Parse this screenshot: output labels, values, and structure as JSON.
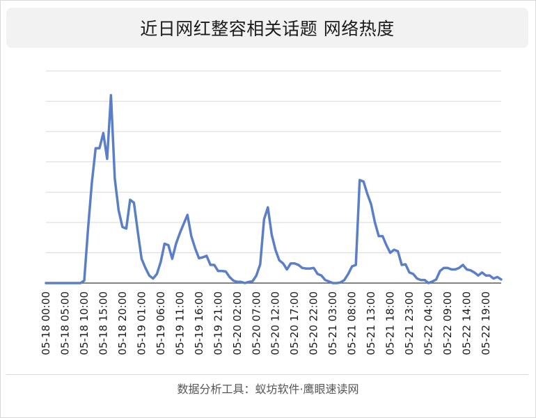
{
  "title": "近日网红整容相关话题 网络热度",
  "footer": "数据分析工具：蚁坊软件·鹰眼速读网",
  "colors": {
    "line": "#5b7ec9",
    "grid": "#d9d9d9",
    "axis": "#595959",
    "text": "#1a1a1a"
  },
  "chart_data": {
    "type": "line",
    "title": "近日网红整容相关话题 网络热度",
    "xlabel": "",
    "ylabel": "",
    "ylim": [
      0,
      7
    ],
    "grid": true,
    "y_tick_labels_shown": false,
    "x_tick_labels": [
      "05-18 00:00",
      "05-18 05:00",
      "05-18 10:00",
      "05-18 15:00",
      "05-18 20:00",
      "05-19 01:00",
      "05-19 06:00",
      "05-19 11:00",
      "05-19 16:00",
      "05-19 21:00",
      "05-20 02:00",
      "05-20 07:00",
      "05-20 12:00",
      "05-20 17:00",
      "05-20 22:00",
      "05-21 03:00",
      "05-21 08:00",
      "05-21 13:00",
      "05-21 18:00",
      "05-21 23:00",
      "05-22 04:00",
      "05-22 09:00",
      "05-22 14:00",
      "05-22 19:00"
    ],
    "series": [
      {
        "name": "",
        "values": [
          0,
          0,
          0,
          0,
          0,
          0,
          0,
          0,
          0,
          0,
          0.08,
          1.8,
          3.3,
          4.45,
          4.45,
          4.95,
          4.1,
          6.2,
          3.45,
          2.4,
          1.85,
          1.8,
          2.75,
          2.65,
          1.7,
          0.8,
          0.5,
          0.25,
          0.15,
          0.3,
          0.7,
          1.3,
          1.25,
          0.8,
          1.3,
          1.65,
          1.95,
          2.25,
          1.55,
          1.15,
          0.82,
          0.85,
          0.9,
          0.6,
          0.6,
          0.4,
          0.4,
          0.38,
          0.2,
          0.08,
          0.04,
          0.04,
          0,
          0.04,
          0.06,
          0.25,
          0.62,
          2.1,
          2.5,
          1.6,
          1.1,
          0.75,
          0.65,
          0.45,
          0.65,
          0.65,
          0.6,
          0.5,
          0.48,
          0.48,
          0.5,
          0.3,
          0.25,
          0.1,
          0.05,
          0,
          0,
          0.02,
          0.1,
          0.3,
          0.55,
          0.6,
          3.4,
          3.35,
          2.95,
          2.6,
          2,
          1.55,
          1.55,
          1.25,
          1,
          1.1,
          1.05,
          0.6,
          0.62,
          0.35,
          0.3,
          0.15,
          0.1,
          0.1,
          0,
          0.05,
          0.12,
          0.4,
          0.5,
          0.5,
          0.45,
          0.45,
          0.5,
          0.6,
          0.45,
          0.42,
          0.35,
          0.25,
          0.35,
          0.25,
          0.25,
          0.15,
          0.2,
          0.12
        ]
      }
    ]
  }
}
